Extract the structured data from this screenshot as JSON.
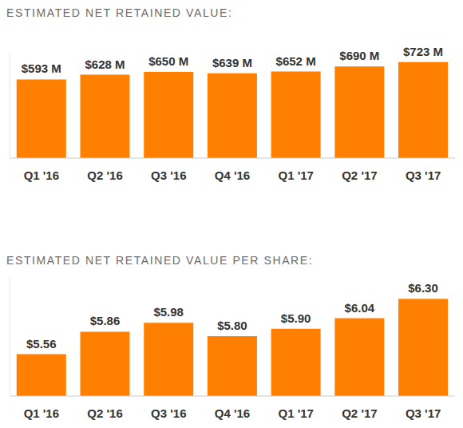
{
  "chart_data": [
    {
      "type": "bar",
      "title": "ESTIMATED NET RETAINED VALUE:",
      "categories": [
        "Q1 '16",
        "Q2 '16",
        "Q3 '16",
        "Q4 '16",
        "Q1 '17",
        "Q2 '17",
        "Q3 '17"
      ],
      "values": [
        593,
        628,
        650,
        639,
        652,
        690,
        723
      ],
      "value_labels": [
        "$593 M",
        "$628 M",
        "$650 M",
        "$639 M",
        "$652 M",
        "$690 M",
        "$723 M"
      ],
      "color": "#ff7f00",
      "ylim": [
        0,
        800
      ],
      "grid": false,
      "data_labels": true,
      "tick_labels": "x"
    },
    {
      "type": "bar",
      "title": "ESTIMATED NET RETAINED VALUE PER SHARE:",
      "categories": [
        "Q1 '16",
        "Q2 '16",
        "Q3 '16",
        "Q4 '16",
        "Q1 '17",
        "Q2 '17",
        "Q3 '17"
      ],
      "values": [
        5.56,
        5.86,
        5.98,
        5.8,
        5.9,
        6.04,
        6.3
      ],
      "value_labels": [
        "$5.56",
        "$5.86",
        "$5.98",
        "$5.80",
        "$5.90",
        "$6.04",
        "$6.30"
      ],
      "color": "#ff7f00",
      "ylim": [
        5,
        6.6
      ],
      "grid": false,
      "data_labels": true,
      "tick_labels": "x"
    }
  ]
}
